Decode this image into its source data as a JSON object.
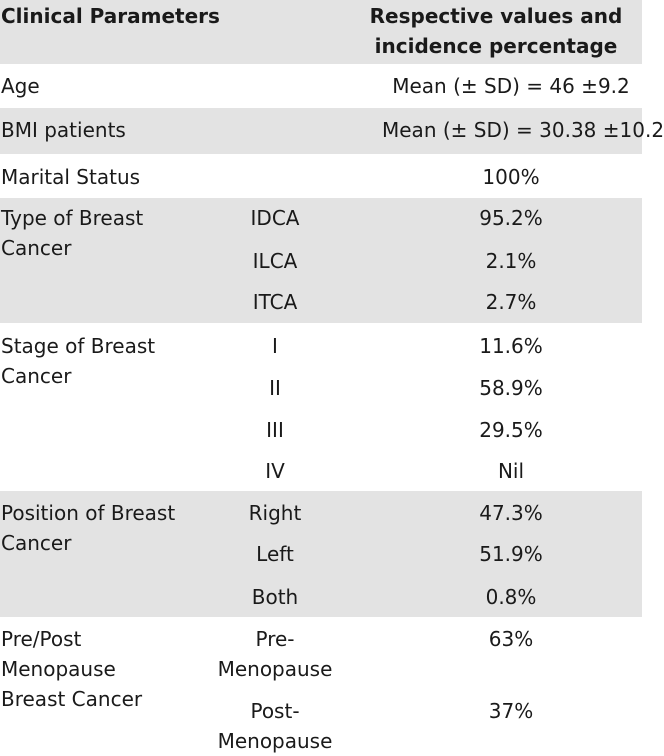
{
  "header": {
    "col1": "Clinical Parameters",
    "col3": "Respective values and incidence percentage"
  },
  "rows": [
    {
      "param": "Age",
      "sub": "",
      "value": "Mean (± SD) = 46 ±9.2"
    },
    {
      "param": "BMI patients",
      "sub": "",
      "value": "Mean (± SD) = 30.38 ±10.2"
    },
    {
      "param": "Marital Status",
      "sub": "",
      "value": "100%"
    },
    {
      "param": "Type of Breast Cancer",
      "subrows": [
        {
          "sub": "IDCA",
          "value": "95.2%"
        },
        {
          "sub": "ILCA",
          "value": "2.1%"
        },
        {
          "sub": "ITCA",
          "value": "2.7%"
        }
      ]
    },
    {
      "param": "Stage of Breast Cancer",
      "subrows": [
        {
          "sub": "I",
          "value": "11.6%"
        },
        {
          "sub": "II",
          "value": "58.9%"
        },
        {
          "sub": "III",
          "value": "29.5%"
        },
        {
          "sub": "IV",
          "value": "Nil"
        }
      ]
    },
    {
      "param": "Position of Breast Cancer",
      "subrows": [
        {
          "sub": "Right",
          "value": "47.3%"
        },
        {
          "sub": "Left",
          "value": "51.9%"
        },
        {
          "sub": "Both",
          "value": "0.8%"
        }
      ]
    },
    {
      "param": "Pre/Post Menopause Breast Cancer",
      "subrows": [
        {
          "sub": "Pre-Menopause",
          "value": "63%"
        },
        {
          "sub": "Post-Menopause",
          "value": "37%"
        }
      ]
    }
  ]
}
